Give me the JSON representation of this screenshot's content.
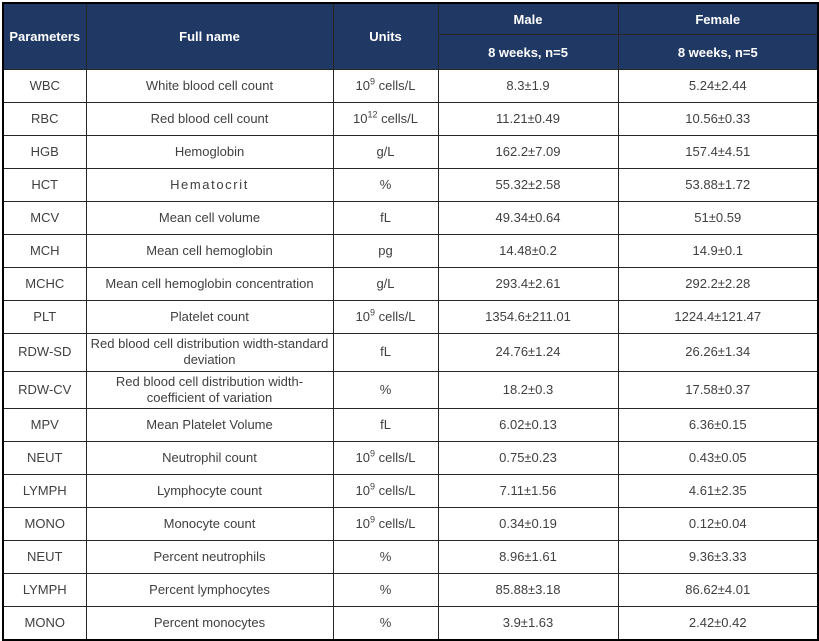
{
  "colors": {
    "header_bg": "#1f3864",
    "header_text": "#ffffff",
    "body_text": "#404040",
    "outer_border": "#000000",
    "inner_border": "#262626"
  },
  "header": {
    "parameters": "Parameters",
    "full_name": "Full name",
    "units": "Units",
    "groups": [
      {
        "label": "Male",
        "subheader": "8 weeks, n=5"
      },
      {
        "label": "Female",
        "subheader": "8 weeks, n=5"
      }
    ]
  },
  "rows": [
    {
      "param": "WBC",
      "full_name": "White blood cell count",
      "unit": "10^9 cells/L",
      "male": "8.3±1.9",
      "female": "5.24±2.44"
    },
    {
      "param": "RBC",
      "full_name": "Red blood cell count",
      "unit": "10^12 cells/L",
      "male": "11.21±0.49",
      "female": "10.56±0.33"
    },
    {
      "param": "HGB",
      "full_name": "Hemoglobin",
      "unit": "g/L",
      "male": "162.2±7.09",
      "female": "157.4±4.51"
    },
    {
      "param": "HCT",
      "full_name": "Hematocrit",
      "unit": "%",
      "male": "55.32±2.58",
      "female": "53.88±1.72",
      "letterSpaced": true
    },
    {
      "param": "MCV",
      "full_name": "Mean cell volume",
      "unit": "fL",
      "male": "49.34±0.64",
      "female": "51±0.59"
    },
    {
      "param": "MCH",
      "full_name": "Mean cell hemoglobin",
      "unit": "pg",
      "male": "14.48±0.2",
      "female": "14.9±0.1"
    },
    {
      "param": "MCHC",
      "full_name": "Mean cell hemoglobin concentration",
      "unit": "g/L",
      "male": "293.4±2.61",
      "female": "292.2±2.28"
    },
    {
      "param": "PLT",
      "full_name": "Platelet count",
      "unit": "10^9 cells/L",
      "male": "1354.6±211.01",
      "female": "1224.4±121.47"
    },
    {
      "param": "RDW-SD",
      "full_name": "Red blood cell distribution width-standard deviation",
      "unit": "fL",
      "male": "24.76±1.24",
      "female": "26.26±1.34"
    },
    {
      "param": "RDW-CV",
      "full_name": "Red blood cell distribution width-coefficient of variation",
      "unit": "%",
      "male": "18.2±0.3",
      "female": "17.58±0.37"
    },
    {
      "param": "MPV",
      "full_name": "Mean Platelet Volume",
      "unit": "fL",
      "male": "6.02±0.13",
      "female": "6.36±0.15"
    },
    {
      "param": "NEUT",
      "full_name": "Neutrophil count",
      "unit": "10^9 cells/L",
      "male": "0.75±0.23",
      "female": "0.43±0.05"
    },
    {
      "param": "LYMPH",
      "full_name": "Lymphocyte count",
      "unit": "10^9 cells/L",
      "male": "7.11±1.56",
      "female": "4.61±2.35"
    },
    {
      "param": "MONO",
      "full_name": "Monocyte count",
      "unit": "10^9 cells/L",
      "male": "0.34±0.19",
      "female": "0.12±0.04"
    },
    {
      "param": "NEUT",
      "full_name": "Percent neutrophils",
      "unit": "%",
      "male": "8.96±1.61",
      "female": "9.36±3.33"
    },
    {
      "param": "LYMPH",
      "full_name": "Percent lymphocytes",
      "unit": "%",
      "male": "85.88±3.18",
      "female": "86.62±4.01"
    },
    {
      "param": "MONO",
      "full_name": "Percent monocytes",
      "unit": "%",
      "male": "3.9±1.63",
      "female": "2.42±0.42"
    }
  ]
}
